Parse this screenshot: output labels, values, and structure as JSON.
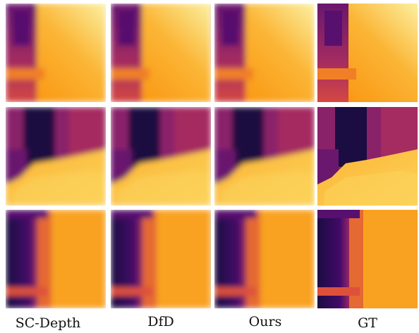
{
  "figure": {
    "columns": [
      "SC-Depth",
      "DfD",
      "Ours",
      "GT"
    ]
  }
}
